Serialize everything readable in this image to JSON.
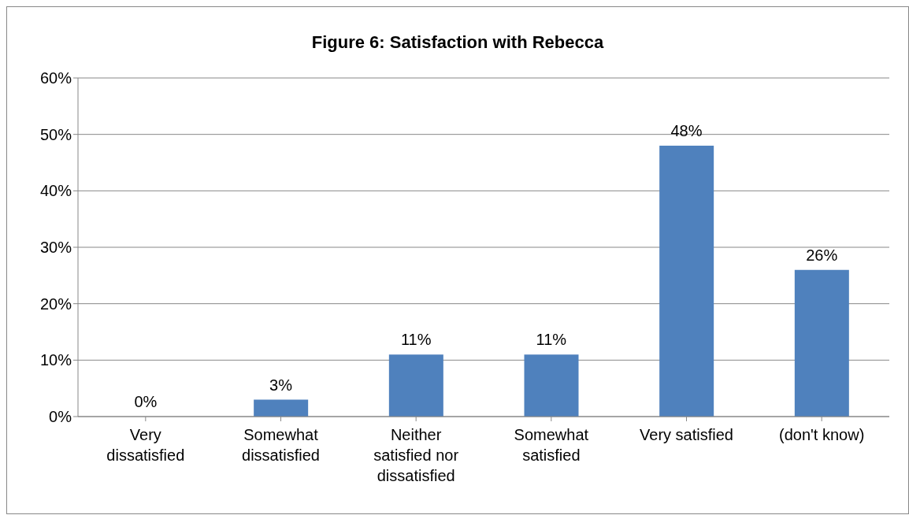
{
  "chart_data": {
    "type": "bar",
    "title": "Figure 6: Satisfaction with Rebecca",
    "categories": [
      "Very dissatisfied",
      "Somewhat dissatisfied",
      "Neither satisfied nor dissatisfied",
      "Somewhat satisfied",
      "Very satisfied",
      "(don't know)"
    ],
    "values": [
      0,
      3,
      11,
      11,
      48,
      26
    ],
    "value_labels": [
      "0%",
      "3%",
      "11%",
      "11%",
      "48%",
      "26%"
    ],
    "color": "#4f81bd",
    "ylim": [
      0,
      60
    ],
    "yticks": [
      {
        "value": 0,
        "label": "0%"
      },
      {
        "value": 10,
        "label": "10%"
      },
      {
        "value": 20,
        "label": "20%"
      },
      {
        "value": 30,
        "label": "30%"
      },
      {
        "value": 40,
        "label": "40%"
      },
      {
        "value": 50,
        "label": "50%"
      },
      {
        "value": 60,
        "label": "60%"
      }
    ],
    "grid": "y",
    "legend": false
  }
}
